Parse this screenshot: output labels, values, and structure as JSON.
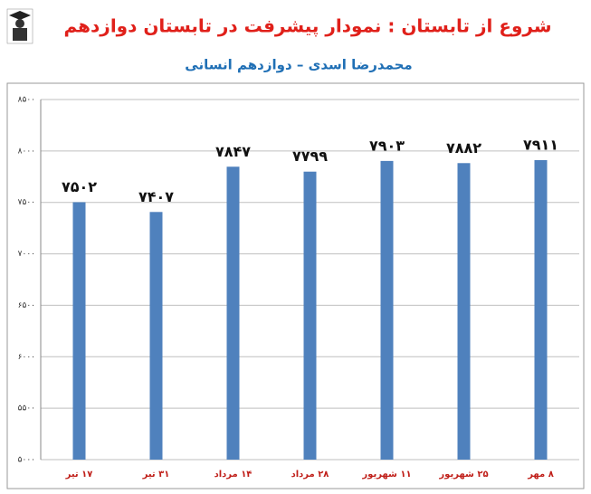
{
  "chart_data": {
    "type": "bar",
    "title": "شروع از تابستان : نمودار پیشرفت در تابستان دوازدهم",
    "subtitle": "محمدرضا اسدی – دوازدهم انسانی",
    "categories": [
      "۱۷ تیر",
      "۳۱ تیر",
      "۱۴ مرداد",
      "۲۸ مرداد",
      "۱۱ شهریور",
      "۲۵ شهریور",
      "۸ مهر"
    ],
    "values": [
      7502,
      7407,
      7847,
      7799,
      7903,
      7882,
      7911
    ],
    "value_labels": [
      "۷۵۰۲",
      "۷۴۰۷",
      "۷۸۴۷",
      "۷۷۹۹",
      "۷۹۰۳",
      "۷۸۸۲",
      "۷۹۱۱"
    ],
    "color": "#4f81bd",
    "ylim": [
      5000,
      8500
    ],
    "yticks": [
      {
        "value": 5000,
        "label": "۵۰۰۰"
      },
      {
        "value": 5500,
        "label": "۵۵۰۰"
      },
      {
        "value": 6000,
        "label": "۶۰۰۰"
      },
      {
        "value": 6500,
        "label": "۶۵۰۰"
      },
      {
        "value": 7000,
        "label": "۷۰۰۰"
      },
      {
        "value": 7500,
        "label": "۷۵۰۰"
      },
      {
        "value": 8000,
        "label": "۸۰۰۰"
      },
      {
        "value": 8500,
        "label": "۸۵۰۰"
      }
    ],
    "grid": true
  }
}
